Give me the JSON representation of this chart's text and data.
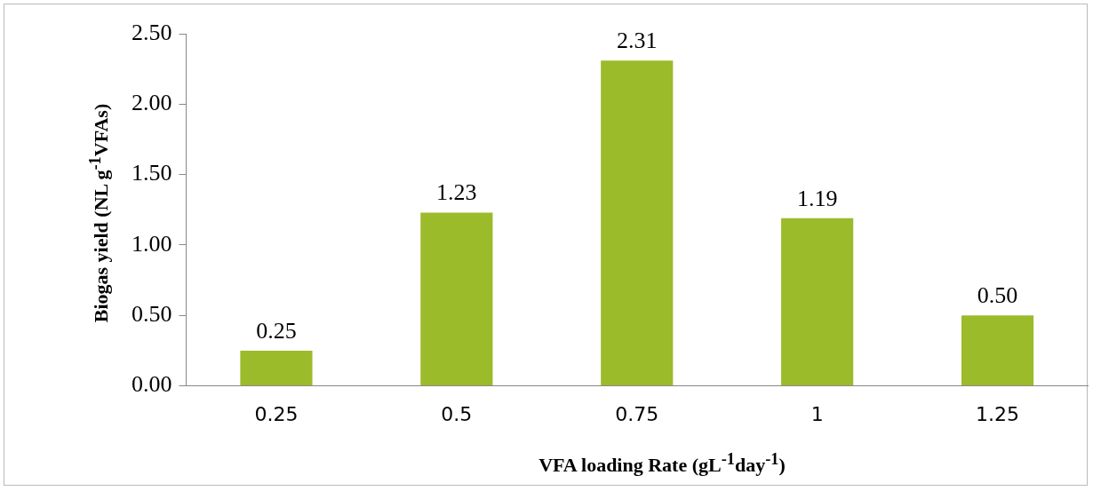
{
  "chart_data": {
    "type": "bar",
    "xlabel": "VFA loading Rate  (gL$^{-1}$day$^{-1}$)",
    "ylabel": "Biogas yield (NL g$^{-1}$VFAs)",
    "categories": [
      "0.25",
      "0.5",
      "0.75",
      "1",
      "1.25"
    ],
    "values": [
      0.25,
      1.23,
      2.31,
      1.19,
      0.5
    ],
    "value_labels": [
      "0.25",
      "1.23",
      "2.31",
      "1.19",
      "0.50"
    ],
    "color": "#9bbb2a",
    "ylim": [
      0,
      2.5
    ],
    "yticks": [
      {
        "value": 0,
        "label": "0.00"
      },
      {
        "value": 0.5,
        "label": "0.50"
      },
      {
        "value": 1,
        "label": "1.00"
      },
      {
        "value": 1.5,
        "label": "1.50"
      },
      {
        "value": 2,
        "label": "2.00"
      },
      {
        "value": 2.5,
        "label": "2.50"
      }
    ],
    "grid": false,
    "legend": false
  }
}
